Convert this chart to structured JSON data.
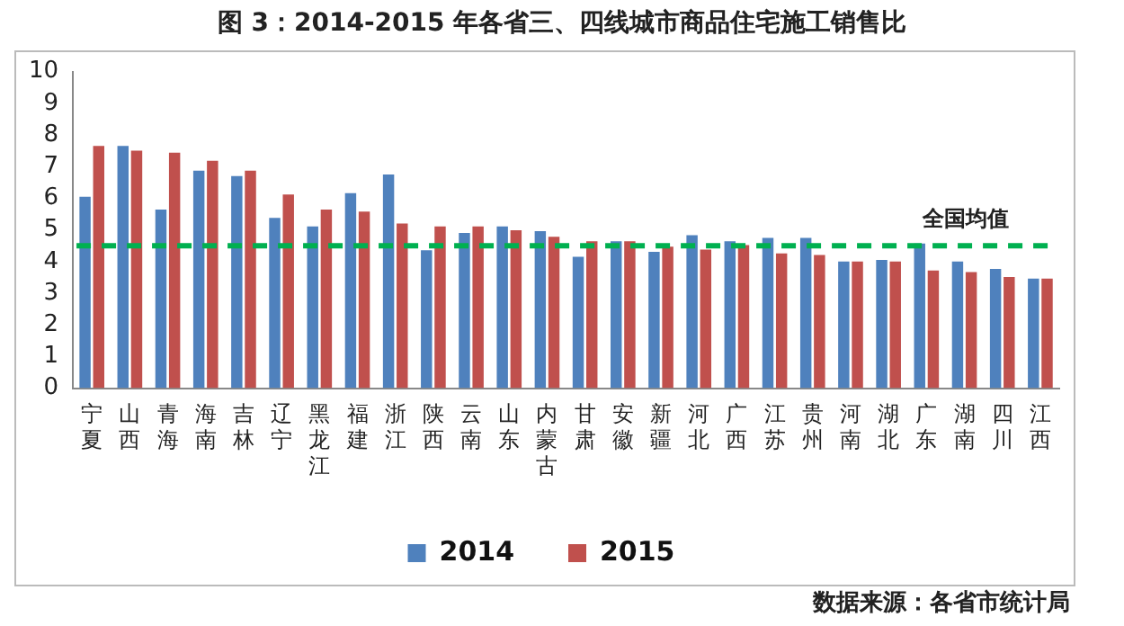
{
  "chart_data": {
    "type": "bar",
    "title": "图 3：2014-2015 年各省三、四线城市商品住宅施工销售比",
    "categories": [
      "宁夏",
      "山西",
      "青海",
      "海南",
      "吉林",
      "辽宁",
      "黑龙江",
      "福建",
      "浙江",
      "陕西",
      "云南",
      "山东",
      "内蒙古",
      "甘肃",
      "安徽",
      "新疆",
      "河北",
      "广西",
      "江苏",
      "贵州",
      "河南",
      "湖北",
      "广东",
      "湖南",
      "四川",
      "江西"
    ],
    "series": [
      {
        "name": "2014",
        "color": "#4f81bd",
        "values": [
          6.05,
          7.65,
          5.64,
          6.87,
          6.7,
          5.38,
          5.11,
          6.16,
          6.75,
          4.36,
          4.9,
          5.11,
          4.96,
          4.15,
          4.64,
          4.31,
          4.83,
          4.64,
          4.75,
          4.75,
          4.0,
          4.05,
          4.57,
          4.0,
          3.77,
          3.46
        ]
      },
      {
        "name": "2015",
        "color": "#c0504d",
        "values": [
          7.65,
          7.5,
          7.44,
          7.18,
          6.87,
          6.12,
          5.64,
          5.58,
          5.2,
          5.11,
          5.11,
          4.99,
          4.78,
          4.64,
          4.64,
          4.47,
          4.38,
          4.52,
          4.26,
          4.21,
          4.0,
          4.0,
          3.72,
          3.67,
          3.51,
          3.46
        ]
      }
    ],
    "ylim": [
      0,
      10
    ],
    "yticks": [
      0,
      1,
      2,
      3,
      4,
      5,
      6,
      7,
      8,
      9,
      10
    ],
    "grid": false,
    "legend": "bottom",
    "ref_lines": [
      {
        "axis": "y",
        "value": 4.5,
        "label": "全国均值",
        "color": "#00b050",
        "line_style": "dashed"
      }
    ],
    "annotations": [
      "数据来源：各省市统计局"
    ]
  }
}
